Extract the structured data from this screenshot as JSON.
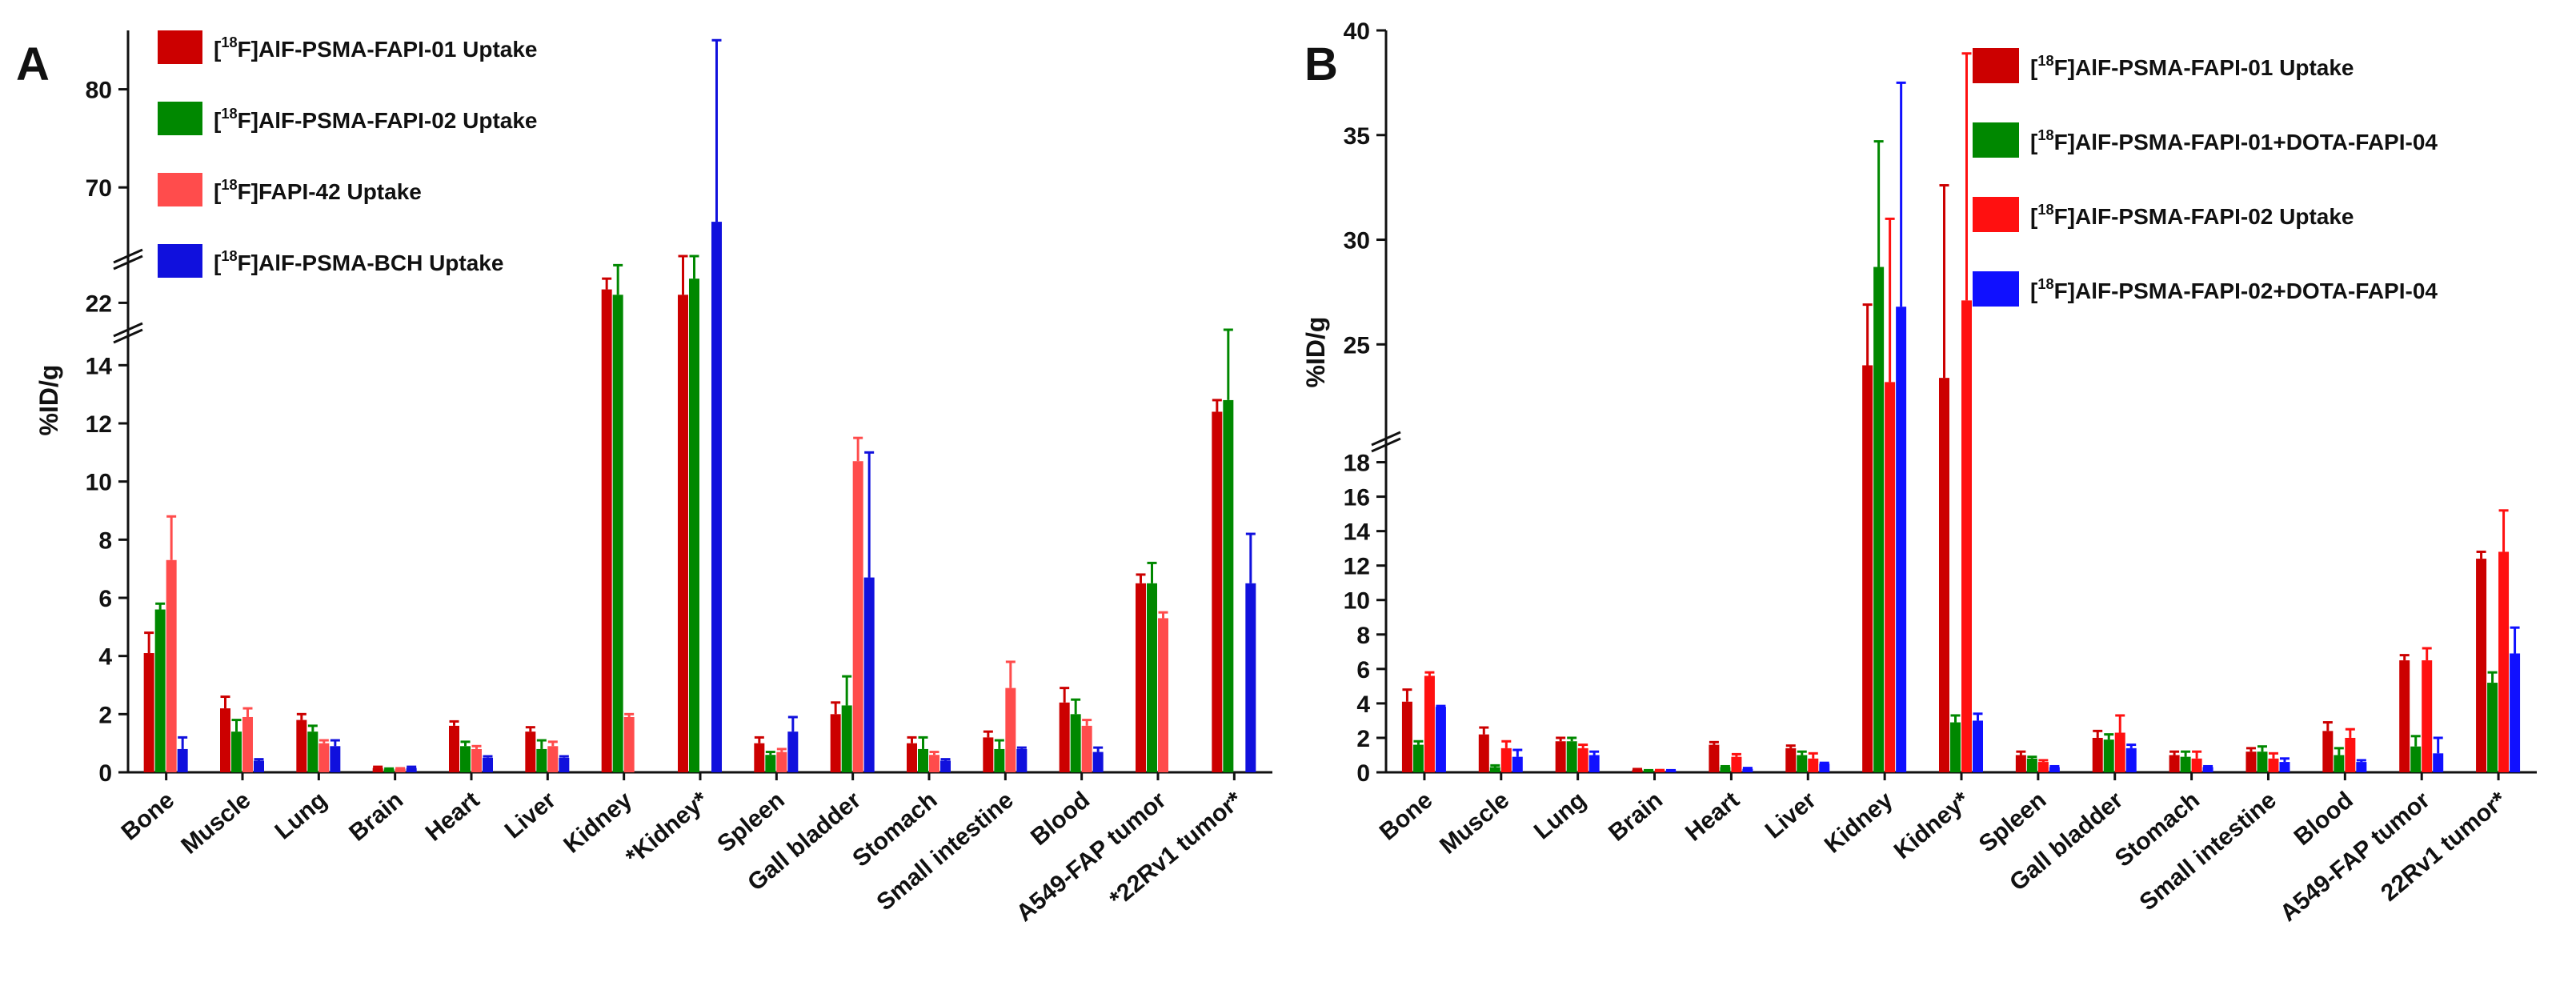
{
  "chart_data": [
    {
      "panel_label": "A",
      "type": "bar",
      "ylabel": "%ID/g",
      "y_segments": [
        {
          "range": [
            0,
            15
          ],
          "ticks": [
            0,
            2,
            4,
            6,
            8,
            10,
            12,
            14
          ]
        },
        {
          "range": [
            21,
            23.5
          ],
          "ticks": [
            22
          ]
        },
        {
          "range": [
            63,
            86
          ],
          "ticks": [
            70,
            80
          ]
        }
      ],
      "categories": [
        "Bone",
        "Muscle",
        "Lung",
        "Brain",
        "Heart",
        "Liver",
        "Kidney",
        "*Kidney*",
        "Spleen",
        "Gall bladder",
        "Stomach",
        "Small intestine",
        "Blood",
        "A549-FAP tumor",
        "*22Rv1 tumor*"
      ],
      "series": [
        {
          "name_pre": "[",
          "name_sup": "18",
          "name_post": "F]AlF-PSMA-FAPI-01 Uptake",
          "color": "#cc0000",
          "values": [
            4.1,
            2.2,
            1.8,
            0.15,
            1.6,
            1.4,
            22.5,
            22.3,
            1.0,
            2.0,
            1.0,
            1.2,
            2.4,
            6.5,
            12.4
          ],
          "errors": [
            0.7,
            0.4,
            0.2,
            0.04,
            0.15,
            0.15,
            0.4,
            1.3,
            0.2,
            0.4,
            0.2,
            0.2,
            0.5,
            0.3,
            0.4
          ]
        },
        {
          "name_pre": "[",
          "name_sup": "18",
          "name_post": "F]AlF-PSMA-FAPI-02 Uptake",
          "color": "#008800",
          "values": [
            5.6,
            1.4,
            1.4,
            0.1,
            0.9,
            0.8,
            22.3,
            22.9,
            0.6,
            2.3,
            0.8,
            0.8,
            2.0,
            6.5,
            12.8
          ],
          "errors": [
            0.2,
            0.4,
            0.2,
            0.03,
            0.15,
            0.3,
            1.1,
            1.5,
            0.1,
            1.0,
            0.4,
            0.3,
            0.5,
            0.7,
            2.4
          ]
        },
        {
          "name_pre": "[",
          "name_sup": "18",
          "name_post": "F]FAPI-42 Uptake",
          "color": "#ff4c4c",
          "values": [
            7.3,
            1.9,
            1.0,
            0.12,
            0.8,
            0.9,
            1.9,
            null,
            0.7,
            10.7,
            0.6,
            2.9,
            1.6,
            5.3,
            null
          ],
          "errors": [
            1.5,
            0.3,
            0.1,
            0.02,
            0.1,
            0.15,
            0.1,
            null,
            0.1,
            0.8,
            0.1,
            0.9,
            0.2,
            0.2,
            null
          ]
        },
        {
          "name_pre": "[",
          "name_sup": "18",
          "name_post": "F]AlF-PSMA-BCH Uptake",
          "color": "#1010dd",
          "values": [
            0.8,
            0.4,
            0.9,
            0.15,
            0.5,
            0.5,
            null,
            66.5,
            1.4,
            6.7,
            0.4,
            0.8,
            0.7,
            null,
            6.5
          ],
          "errors": [
            0.4,
            0.05,
            0.2,
            0.04,
            0.05,
            0.05,
            null,
            18.5,
            0.5,
            4.3,
            0.05,
            0.05,
            0.15,
            null,
            1.7
          ]
        }
      ]
    },
    {
      "panel_label": "B",
      "type": "bar",
      "ylabel": "%ID/g",
      "y_segments": [
        {
          "range": [
            0,
            19
          ],
          "ticks": [
            0,
            2,
            4,
            6,
            8,
            10,
            12,
            14,
            16,
            18
          ]
        },
        {
          "range": [
            20.5,
            40
          ],
          "ticks": [
            25,
            30,
            35,
            40
          ]
        }
      ],
      "categories": [
        "Bone",
        "Muscle",
        "Lung",
        "Brain",
        "Heart",
        "Liver",
        "Kidney",
        "Kidney*",
        "Spleen",
        "Gall bladder",
        "Stomach",
        "Small intestine",
        "Blood",
        "A549-FAP tumor",
        "22Rv1 tumor*"
      ],
      "series": [
        {
          "name_pre": "[",
          "name_sup": "18",
          "name_post": "F]AlF-PSMA-FAPI-01 Uptake",
          "color": "#cc0000",
          "values": [
            4.1,
            2.2,
            1.8,
            0.15,
            1.6,
            1.4,
            24.0,
            23.4,
            1.0,
            2.0,
            1.0,
            1.2,
            2.4,
            6.5,
            12.4
          ],
          "errors": [
            0.7,
            0.4,
            0.2,
            0.04,
            0.15,
            0.15,
            2.9,
            9.2,
            0.2,
            0.4,
            0.2,
            0.2,
            0.5,
            0.3,
            0.4
          ]
        },
        {
          "name_pre": "[",
          "name_sup": "18",
          "name_post": "F]AlF-PSMA-FAPI-01+DOTA-FAPI-04",
          "color": "#008800",
          "values": [
            1.6,
            0.3,
            1.8,
            0.1,
            0.3,
            1.0,
            28.7,
            2.9,
            0.8,
            1.9,
            0.9,
            1.2,
            1.0,
            1.5,
            5.2
          ],
          "errors": [
            0.2,
            0.1,
            0.2,
            0.02,
            0.05,
            0.2,
            6.0,
            0.4,
            0.1,
            0.3,
            0.3,
            0.3,
            0.4,
            0.6,
            0.6
          ]
        },
        {
          "name_pre": "[",
          "name_sup": "18",
          "name_post": "F]AlF-PSMA-FAPI-02 Uptake",
          "color": "#ff1010",
          "values": [
            5.6,
            1.4,
            1.4,
            0.1,
            0.9,
            0.8,
            23.2,
            27.1,
            0.6,
            2.3,
            0.8,
            0.8,
            2.0,
            6.5,
            12.8
          ],
          "errors": [
            0.2,
            0.4,
            0.2,
            0.03,
            0.15,
            0.3,
            7.8,
            11.8,
            0.1,
            1.0,
            0.4,
            0.3,
            0.5,
            0.7,
            2.4
          ]
        },
        {
          "name_pre": "[",
          "name_sup": "18",
          "name_post": "F]AlF-PSMA-FAPI-02+DOTA-FAPI-04",
          "color": "#1010ff",
          "values": [
            3.8,
            0.9,
            1.0,
            0.1,
            0.2,
            0.5,
            26.8,
            3.0,
            0.3,
            1.4,
            0.3,
            0.6,
            0.6,
            1.1,
            6.9
          ],
          "errors": [
            0.05,
            0.4,
            0.2,
            0.02,
            0.05,
            0.05,
            10.7,
            0.4,
            0.05,
            0.2,
            0.05,
            0.2,
            0.1,
            0.9,
            1.5
          ]
        }
      ]
    }
  ]
}
